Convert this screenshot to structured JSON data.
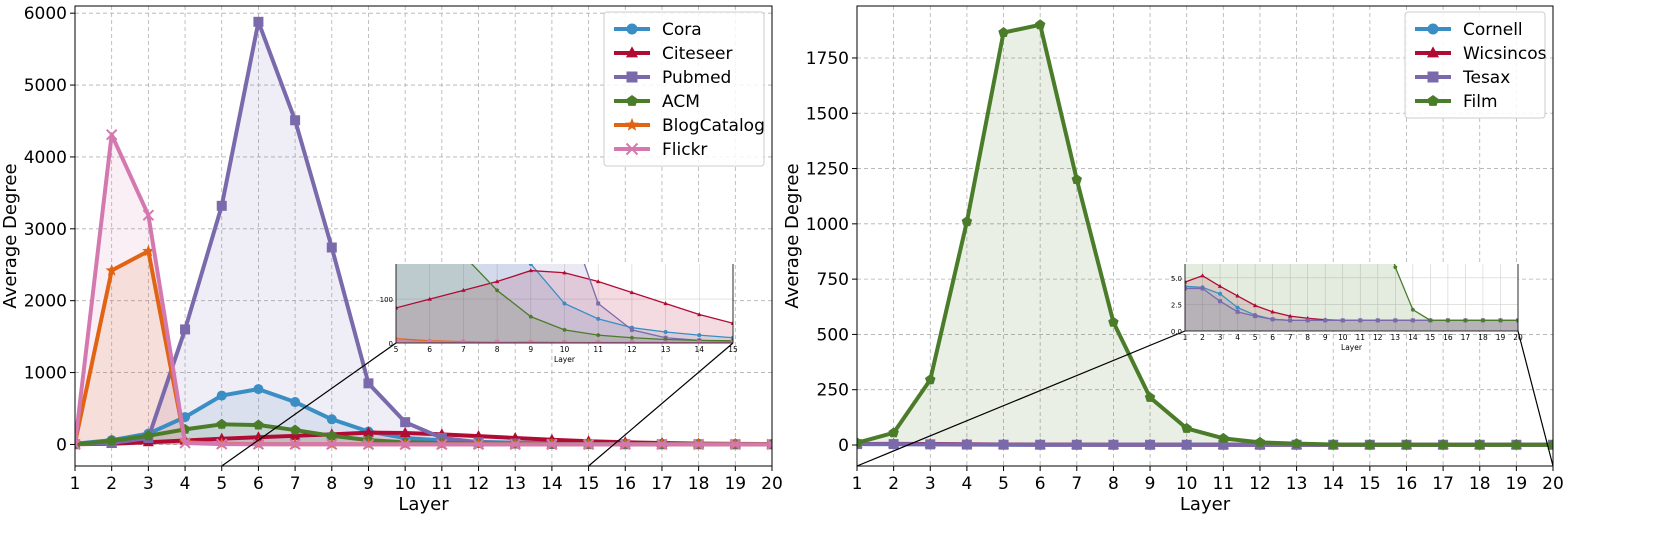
{
  "chart_data": [
    {
      "type": "line",
      "xlabel": "Layer",
      "ylabel": "Average Degree",
      "x": [
        1,
        2,
        3,
        4,
        5,
        6,
        7,
        8,
        9,
        10,
        11,
        12,
        13,
        14,
        15,
        16,
        17,
        18,
        19,
        20
      ],
      "xticks": [
        "1",
        "2",
        "3",
        "4",
        "5",
        "6",
        "7",
        "8",
        "9",
        "10",
        "11",
        "12",
        "13",
        "14",
        "15",
        "16",
        "17",
        "18",
        "19",
        "20"
      ],
      "ylim": [
        -300,
        6100
      ],
      "yticks": [
        0,
        1000,
        2000,
        3000,
        4000,
        5000,
        6000
      ],
      "ytick_labels": [
        "0",
        "1000",
        "2000",
        "3000",
        "4000",
        "5000",
        "6000"
      ],
      "grid": true,
      "legend": "top-right",
      "series": [
        {
          "name": "Cora",
          "color": "#3a8ec4",
          "marker": "circle",
          "values": [
            10,
            60,
            150,
            380,
            680,
            770,
            590,
            350,
            180,
            90,
            55,
            35,
            25,
            18,
            12,
            10,
            8,
            7,
            6,
            5
          ]
        },
        {
          "name": "Citeseer",
          "color": "#b00b35",
          "marker": "triangle",
          "values": [
            2,
            10,
            30,
            55,
            80,
            100,
            120,
            140,
            165,
            160,
            140,
            115,
            90,
            65,
            45,
            30,
            20,
            12,
            8,
            5
          ]
        },
        {
          "name": "Pubmed",
          "color": "#7a6aac",
          "marker": "square",
          "values": [
            3,
            20,
            90,
            1600,
            3320,
            5880,
            4510,
            2740,
            850,
            310,
            90,
            30,
            12,
            6,
            4,
            3,
            2,
            2,
            1,
            1
          ]
        },
        {
          "name": "ACM",
          "color": "#4a7c2a",
          "marker": "pentagon",
          "values": [
            5,
            50,
            120,
            210,
            280,
            270,
            200,
            120,
            60,
            30,
            18,
            12,
            8,
            6,
            5,
            4,
            3,
            3,
            2,
            2
          ]
        },
        {
          "name": "BlogCatalog",
          "color": "#e06414",
          "marker": "star",
          "values": [
            20,
            2420,
            2690,
            30,
            10,
            5,
            3,
            2,
            2,
            1,
            1,
            1,
            1,
            1,
            1,
            1,
            1,
            1,
            1,
            1
          ]
        },
        {
          "name": "Flickr",
          "color": "#d479b0",
          "marker": "x",
          "values": [
            0,
            4310,
            3190,
            20,
            5,
            3,
            2,
            2,
            1,
            1,
            1,
            1,
            1,
            1,
            1,
            1,
            1,
            1,
            1,
            1
          ]
        }
      ],
      "inset": {
        "xlabel": "Layer",
        "x": [
          5,
          6,
          7,
          8,
          9,
          10,
          11,
          12,
          13,
          14,
          15
        ],
        "xticks": [
          "5",
          "6",
          "7",
          "8",
          "9",
          "10",
          "11",
          "12",
          "13",
          "14",
          "15"
        ],
        "ylim": [
          0,
          180
        ],
        "yticks": [
          0,
          100
        ],
        "ytick_labels": [
          "0",
          "100"
        ]
      }
    },
    {
      "type": "line",
      "xlabel": "Layer",
      "ylabel": "Average Degree",
      "x": [
        1,
        2,
        3,
        4,
        5,
        6,
        7,
        8,
        9,
        10,
        11,
        12,
        13,
        14,
        15,
        16,
        17,
        18,
        19,
        20
      ],
      "xticks": [
        "1",
        "2",
        "3",
        "4",
        "5",
        "6",
        "7",
        "8",
        "9",
        "10",
        "11",
        "12",
        "13",
        "14",
        "15",
        "16",
        "17",
        "18",
        "19",
        "20"
      ],
      "ylim": [
        -95,
        1985
      ],
      "yticks": [
        0,
        250,
        500,
        750,
        1000,
        1250,
        1500,
        1750
      ],
      "ytick_labels": [
        "0",
        "250",
        "500",
        "750",
        "1000",
        "1250",
        "1500",
        "1750"
      ],
      "grid": true,
      "legend": "top-right",
      "series": [
        {
          "name": "Cornell",
          "color": "#3a8ec4",
          "marker": "circle",
          "values": [
            4.2,
            4.1,
            3.5,
            2.2,
            1.5,
            1.1,
            1.0,
            1.0,
            1.0,
            1.0,
            1.0,
            1.0,
            1.0,
            1.0,
            1.0,
            1.0,
            1.0,
            1.0,
            1.0,
            1.0
          ]
        },
        {
          "name": "Wicsincos",
          "color": "#b00b35",
          "marker": "triangle",
          "values": [
            4.6,
            5.2,
            4.2,
            3.3,
            2.4,
            1.8,
            1.4,
            1.2,
            1.05,
            1.0,
            1.0,
            1.0,
            1.0,
            1.0,
            1.0,
            1.0,
            1.0,
            1.0,
            1.0,
            1.0
          ]
        },
        {
          "name": "Tesax",
          "color": "#7a6aac",
          "marker": "square",
          "values": [
            4.0,
            4.0,
            2.8,
            1.8,
            1.4,
            1.1,
            1.0,
            1.0,
            1.0,
            1.0,
            1.0,
            1.0,
            1.0,
            1.0,
            1.0,
            1.0,
            1.0,
            1.0,
            1.0,
            1.0
          ]
        },
        {
          "name": "Film",
          "color": "#4a7c2a",
          "marker": "pentagon",
          "values": [
            10,
            55,
            295,
            1010,
            1865,
            1900,
            1200,
            555,
            215,
            75,
            30,
            12,
            6,
            2,
            1,
            1,
            1,
            1,
            1,
            1
          ]
        }
      ],
      "inset": {
        "xlabel": "Layer",
        "x": [
          1,
          2,
          3,
          4,
          5,
          6,
          7,
          8,
          9,
          10,
          11,
          12,
          13,
          14,
          15,
          16,
          17,
          18,
          19,
          20
        ],
        "xticks": [
          "1",
          "2",
          "3",
          "4",
          "5",
          "6",
          "7",
          "8",
          "9",
          "10",
          "11",
          "12",
          "13",
          "14",
          "15",
          "16",
          "17",
          "18",
          "19",
          "20"
        ],
        "ylim": [
          0,
          6.3
        ],
        "yticks": [
          0,
          2.5,
          5
        ],
        "ytick_labels": [
          "0.0",
          "2.5",
          "5.0"
        ]
      }
    }
  ]
}
